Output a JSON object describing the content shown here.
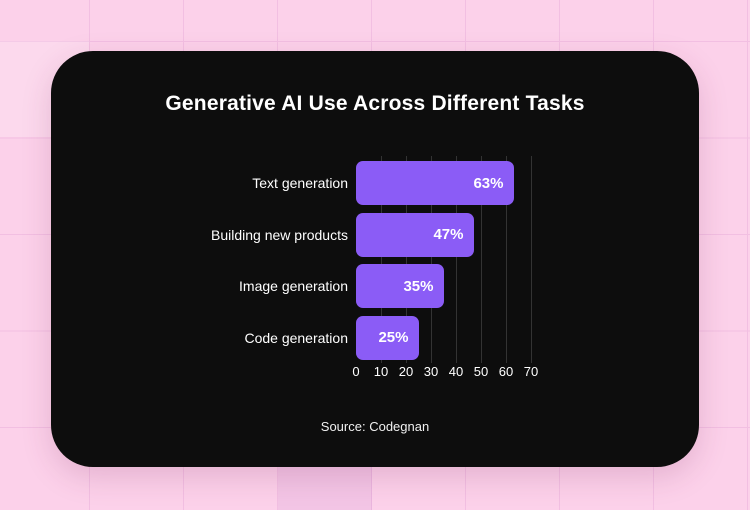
{
  "colors": {
    "page_background": "#fcd1ea",
    "page_grid_line": "#f2bfe2",
    "card_background": "#0d0d0d",
    "bar_fill": "#8b5cf6",
    "chart_grid_line": "#333333",
    "text_primary": "#ffffff",
    "text_muted": "#f0f0f0"
  },
  "chart_data": {
    "type": "bar",
    "orientation": "horizontal",
    "title": "Generative AI Use Across Different Tasks",
    "categories": [
      "Text generation",
      "Building new products",
      "Image generation",
      "Code generation"
    ],
    "values": [
      63,
      47,
      35,
      25
    ],
    "value_labels": [
      "63%",
      "47%",
      "35%",
      "25%"
    ],
    "x_ticks": [
      "0",
      "10",
      "20",
      "30",
      "40",
      "50",
      "60",
      "70"
    ],
    "xlim": [
      0,
      70
    ],
    "grid": true,
    "legend_position": "none",
    "source": "Source: Codegnan"
  }
}
